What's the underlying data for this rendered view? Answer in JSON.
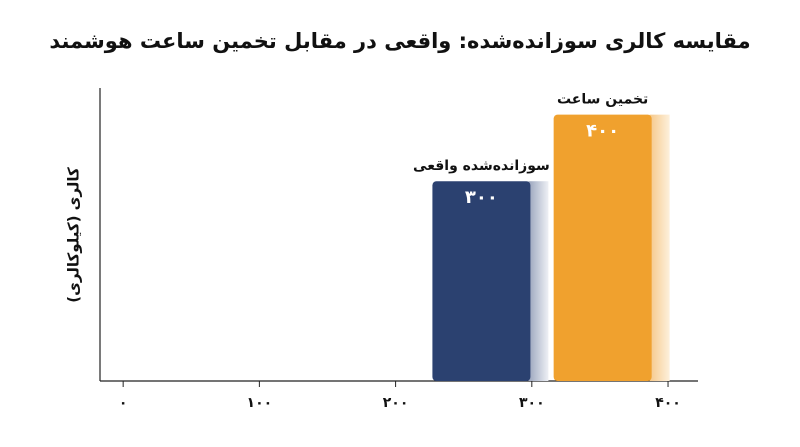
{
  "chart_data": {
    "type": "bar",
    "title": "مقایسه کالری سوزانده‌شده: واقعی در مقابل تخمین ساعت هوشمند",
    "y_label": "کالری (کیلوکالری)",
    "categories": [
      "سوزانده‌شده واقعی",
      "تخمین ساعت"
    ],
    "x": [
      263,
      352
    ],
    "values": [
      300,
      400
    ],
    "value_labels": [
      "۳۰۰",
      "۴۰۰"
    ],
    "colors": [
      "#2b4170",
      "#f0a12e"
    ],
    "xlim": [
      -17,
      422
    ],
    "xticks": [
      {
        "value": 0,
        "label": "۰"
      },
      {
        "value": 100,
        "label": "۱۰۰"
      },
      {
        "value": 200,
        "label": "۲۰۰"
      },
      {
        "value": 300,
        "label": "۳۰۰"
      },
      {
        "value": 400,
        "label": "۴۰۰"
      }
    ],
    "ylim": [
      0,
      440
    ]
  }
}
